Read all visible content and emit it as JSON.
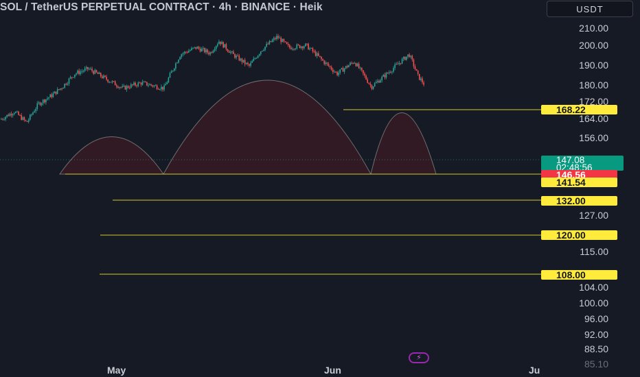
{
  "header": {
    "title": "SOL / TetherUS PERPETUAL CONTRACT · 4h · BINANCE · Heik",
    "currency": "USDT"
  },
  "chart_data": {
    "type": "candlestick",
    "price_axis": {
      "ticks": [
        "210.00",
        "200.00",
        "190.00",
        "180.00",
        "172.00",
        "164.00",
        "156.00",
        "127.00",
        "115.00",
        "104.00",
        "100.00",
        "96.00",
        "92.00",
        "88.50",
        "85.10"
      ],
      "tick_values": [
        210,
        200,
        190,
        180,
        172,
        164,
        156,
        127,
        115,
        104,
        100,
        96,
        92,
        88.5,
        85.1
      ],
      "scale": "log"
    },
    "time_axis": {
      "labels": [
        "May",
        "Jun",
        "Ju"
      ]
    },
    "current_price": {
      "price": "147.08",
      "countdown": "02:48:56",
      "value": 147.08
    },
    "bid_price": {
      "label": "146.56",
      "value": 146.56
    },
    "levels": [
      {
        "label": "168.22",
        "value": 168.22
      },
      {
        "label": "141.54",
        "value": 141.54
      },
      {
        "label": "132.00",
        "value": 132.0
      },
      {
        "label": "120.00",
        "value": 120.0
      },
      {
        "label": "108.00",
        "value": 108.0
      }
    ],
    "colors": {
      "up": "#26a69a",
      "down": "#ef5350",
      "level": "#ffeb3b",
      "pattern_fill": "#3a1a22"
    },
    "annotation": "head and shoulders pattern"
  },
  "footer": {
    "bolt_icon": "lightning-icon"
  }
}
